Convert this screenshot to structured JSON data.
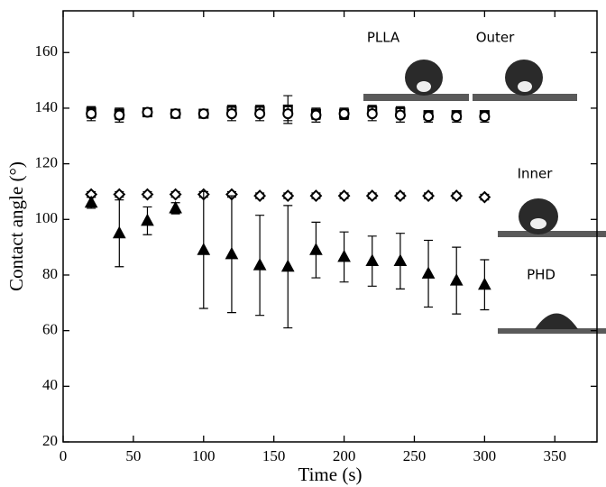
{
  "chart_data": {
    "type": "scatter",
    "x_label": "Time (s)",
    "y_label": "Contact angle (°)",
    "xlim": [
      0,
      380
    ],
    "ylim": [
      20,
      175
    ],
    "xticks": [
      0,
      50,
      100,
      150,
      200,
      250,
      300,
      350
    ],
    "yticks": [
      20,
      40,
      60,
      80,
      100,
      120,
      140,
      160
    ],
    "x": [
      20,
      40,
      60,
      80,
      100,
      120,
      140,
      160,
      180,
      200,
      220,
      240,
      260,
      280,
      300
    ],
    "series": [
      {
        "name": "PLLA",
        "marker": "square",
        "color": "#000000",
        "values": [
          138.5,
          138,
          138.5,
          138,
          138,
          139,
          139,
          139.5,
          138,
          138,
          139,
          138.5,
          137.5,
          137.5,
          137.5
        ],
        "errors": [
          2,
          2,
          1.5,
          1.5,
          1.5,
          2,
          2,
          5,
          2,
          2,
          2,
          2,
          1.5,
          1.5,
          1.5
        ]
      },
      {
        "name": "Outer",
        "marker": "circle",
        "color": "#000000",
        "values": [
          138,
          137.5,
          138.5,
          138,
          138,
          138,
          138,
          138,
          137.5,
          138,
          138,
          137.5,
          137,
          137,
          137
        ],
        "errors": [
          2.5,
          2.5,
          1.5,
          1,
          1.5,
          2.5,
          2.5,
          2.5,
          2.5,
          2,
          2.5,
          2.5,
          2,
          2,
          2
        ]
      },
      {
        "name": "Inner",
        "marker": "diamond",
        "color": "#000000",
        "values": [
          109,
          109,
          109,
          109,
          109,
          109,
          108.5,
          108.5,
          108.5,
          108.5,
          108.5,
          108.5,
          108.5,
          108.5,
          108
        ],
        "errors": [
          1,
          1,
          1,
          1,
          1,
          1,
          1,
          1,
          1,
          1,
          1,
          1,
          1,
          1,
          1
        ]
      },
      {
        "name": "PHD",
        "marker": "triangle",
        "color": "#000000",
        "values": [
          106,
          95,
          99.5,
          104,
          89,
          87.5,
          83.5,
          83,
          89,
          86.5,
          85,
          85,
          80.5,
          78,
          76.5
        ],
        "errors": [
          2,
          12,
          5,
          2,
          21,
          21,
          18,
          22,
          10,
          9,
          9,
          10,
          12,
          12,
          9
        ]
      }
    ]
  }
}
